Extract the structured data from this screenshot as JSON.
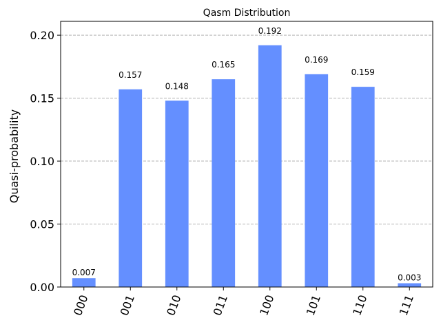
{
  "chart_data": {
    "type": "bar",
    "title": "Qasm Distribution",
    "xlabel": "",
    "ylabel": "Quasi-probability",
    "categories": [
      "000",
      "001",
      "010",
      "011",
      "100",
      "101",
      "110",
      "111"
    ],
    "values": [
      0.007,
      0.157,
      0.148,
      0.165,
      0.192,
      0.169,
      0.159,
      0.003
    ],
    "value_labels": [
      "0.007",
      "0.157",
      "0.148",
      "0.165",
      "0.192",
      "0.169",
      "0.159",
      "0.003"
    ],
    "ylim": [
      0,
      0.211
    ],
    "yticks": [
      0.0,
      0.05,
      0.1,
      0.15,
      0.2
    ],
    "ytick_labels": [
      "0.00",
      "0.05",
      "0.10",
      "0.15",
      "0.20"
    ],
    "grid": "y-dashed",
    "bar_color": "#648fff",
    "grid_color": "#b0b0b0"
  }
}
